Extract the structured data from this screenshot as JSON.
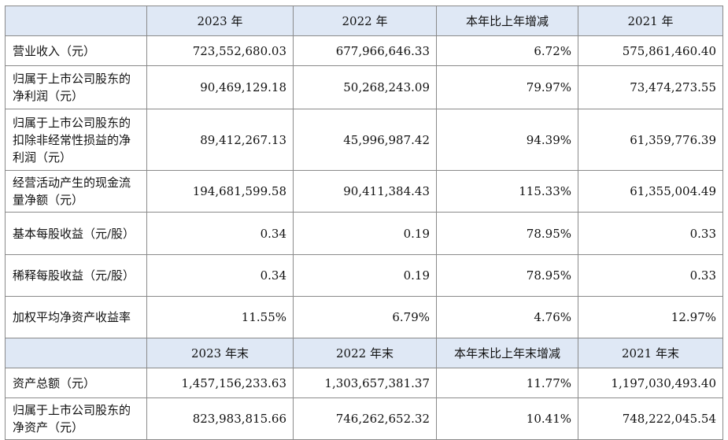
{
  "header1": [
    "",
    "2023 年",
    "2022 年",
    "本年比上年增减",
    "2021 年"
  ],
  "rows1": [
    {
      "label": "营业收入（元）",
      "values": [
        "723,552,680.03",
        "677,966,646.33",
        "6.72%",
        "575,861,460.40"
      ]
    },
    {
      "label": "归属于上市公司股东的净利润（元）",
      "values": [
        "90,469,129.18",
        "50,268,243.09",
        "79.97%",
        "73,474,273.55"
      ]
    },
    {
      "label": "归属于上市公司股东的扣除非经常性损益的净利润（元）",
      "values": [
        "89,412,267.13",
        "45,996,987.42",
        "94.39%",
        "61,359,776.39"
      ]
    },
    {
      "label": "经营活动产生的现金流量净额（元）",
      "values": [
        "194,681,599.58",
        "90,411,384.43",
        "115.33%",
        "61,355,004.49"
      ]
    },
    {
      "label": "基本每股收益（元/股）",
      "values": [
        "0.34",
        "0.19",
        "78.95%",
        "0.33"
      ]
    },
    {
      "label": "稀释每股收益（元/股）",
      "values": [
        "0.34",
        "0.19",
        "78.95%",
        "0.33"
      ]
    },
    {
      "label": "加权平均净资产收益率",
      "values": [
        "11.55%",
        "6.79%",
        "4.76%",
        "12.97%"
      ]
    }
  ],
  "header2": [
    "",
    "2023 年末",
    "2022 年末",
    "本年末比上年末增减",
    "2021 年末"
  ],
  "rows2": [
    {
      "label": "资产总额（元）",
      "values": [
        "1,457,156,233.63",
        "1,303,657,381.37",
        "11.77%",
        "1,197,030,493.40"
      ]
    },
    {
      "label": "归属于上市公司股东的净资产（元）",
      "values": [
        "823,983,815.66",
        "746,262,652.32",
        "10.41%",
        "748,222,045.54"
      ]
    }
  ]
}
